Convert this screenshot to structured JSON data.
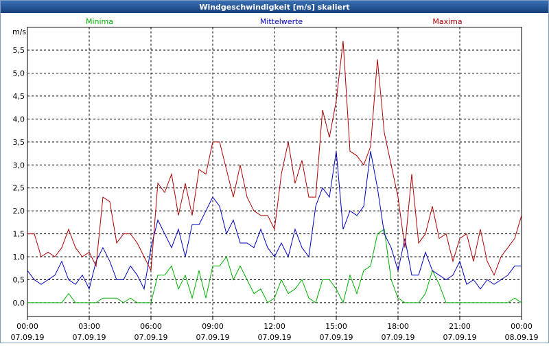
{
  "chart_data": {
    "type": "line",
    "title": "Windgeschwindigkeit [m/s] skaliert",
    "ylabel": "m/s",
    "x": [
      0,
      20,
      40,
      60,
      80,
      100,
      120,
      140,
      160,
      180,
      200,
      220,
      240,
      260,
      280,
      300,
      320,
      340,
      360,
      380,
      400,
      420,
      440,
      460,
      480,
      500,
      520,
      540,
      560,
      580,
      600,
      620,
      640,
      660,
      680,
      700,
      720,
      740,
      760,
      780,
      800,
      820,
      840,
      860,
      880,
      900,
      920,
      940,
      960,
      980,
      1000,
      1020,
      1040,
      1060,
      1080,
      1100,
      1120,
      1140,
      1160,
      1180,
      1200,
      1220,
      1240,
      1260,
      1280,
      1300,
      1320,
      1340,
      1360,
      1380,
      1400,
      1420,
      1440
    ],
    "series": [
      {
        "name": "Minima",
        "color": "#00b000",
        "values": [
          0,
          0,
          0,
          0,
          0,
          0,
          0.2,
          0,
          0,
          0,
          0,
          0.1,
          0.1,
          0.1,
          0,
          0.1,
          0,
          0,
          0,
          0.6,
          0.6,
          0.8,
          0.3,
          0.6,
          0.1,
          0.7,
          0.1,
          0.8,
          0.8,
          1.0,
          0.5,
          0.8,
          0.5,
          0.2,
          0.3,
          0,
          0.1,
          0.5,
          0.2,
          0.3,
          0.5,
          0.1,
          0,
          0.5,
          0.5,
          0.3,
          0,
          0.6,
          0.2,
          0.7,
          0.8,
          1.5,
          1.6,
          0.5,
          0.1,
          0,
          0,
          0,
          0.2,
          0.7,
          0.4,
          0,
          0,
          0,
          0,
          0,
          0,
          0,
          0,
          0,
          0,
          0.1,
          0
        ]
      },
      {
        "name": "Mittelwerte",
        "color": "#0000c0",
        "values": [
          0.7,
          0.5,
          0.4,
          0.5,
          0.6,
          0.9,
          0.5,
          0.4,
          0.6,
          0.3,
          0.9,
          1.2,
          0.9,
          0.5,
          0.5,
          0.8,
          0.6,
          0.3,
          1.2,
          1.8,
          1.5,
          1.2,
          1.6,
          1.0,
          1.7,
          1.7,
          2.0,
          2.3,
          2.1,
          1.5,
          1.8,
          1.3,
          1.3,
          1.2,
          1.6,
          1.2,
          1.0,
          1.3,
          1.0,
          1.6,
          1.2,
          1.0,
          2.1,
          2.5,
          2.3,
          3.3,
          1.6,
          2.0,
          1.9,
          2.1,
          3.3,
          2.5,
          1.5,
          1.2,
          0.7,
          1.4,
          0.6,
          0.6,
          1.1,
          0.7,
          0.6,
          0.5,
          0.6,
          0.9,
          0.4,
          0.5,
          0.3,
          0.5,
          0.4,
          0.5,
          0.6,
          0.8,
          0.8
        ]
      },
      {
        "name": "Maxima",
        "color": "#b00000",
        "values": [
          1.5,
          1.5,
          1.0,
          1.1,
          1.0,
          1.2,
          1.6,
          1.2,
          1.0,
          1.1,
          0.8,
          2.3,
          2.2,
          1.3,
          1.5,
          1.5,
          1.3,
          1.0,
          0.7,
          2.6,
          2.4,
          2.8,
          1.9,
          2.6,
          1.9,
          2.9,
          2.8,
          3.5,
          3.5,
          2.9,
          2.3,
          3.0,
          2.3,
          2.0,
          1.9,
          1.9,
          1.6,
          2.8,
          3.5,
          2.6,
          3.1,
          2.3,
          2.3,
          4.2,
          3.6,
          4.4,
          5.7,
          3.3,
          3.2,
          3.0,
          3.4,
          5.3,
          3.7,
          3.0,
          2.3,
          1.2,
          2.8,
          1.3,
          1.5,
          2.1,
          1.4,
          1.5,
          0.9,
          1.4,
          1.5,
          0.9,
          1.6,
          0.9,
          0.6,
          1.0,
          1.2,
          1.4,
          1.9
        ]
      }
    ],
    "xlim": [
      0,
      1440
    ],
    "xticks": [
      {
        "value": 0,
        "label": "00:00"
      },
      {
        "value": 180,
        "label": "03:00"
      },
      {
        "value": 360,
        "label": "06:00"
      },
      {
        "value": 540,
        "label": "09:00"
      },
      {
        "value": 720,
        "label": "12:00"
      },
      {
        "value": 900,
        "label": "15:00"
      },
      {
        "value": 1080,
        "label": "18:00"
      },
      {
        "value": 1260,
        "label": "21:00"
      },
      {
        "value": 1440,
        "label": "00:00"
      }
    ],
    "xtick_dates": [
      "07.09.19",
      "07.09.19",
      "07.09.19",
      "07.09.19",
      "07.09.19",
      "07.09.19",
      "07.09.19",
      "07.09.19",
      "08.09.19"
    ],
    "ylim": [
      -0.3,
      6.0
    ],
    "yticks": [
      {
        "value": 0,
        "label": "0,0"
      },
      {
        "value": 0.5,
        "label": "0,5"
      },
      {
        "value": 1,
        "label": "1,0"
      },
      {
        "value": 1.5,
        "label": "1,5"
      },
      {
        "value": 2,
        "label": "2,0"
      },
      {
        "value": 2.5,
        "label": "2,5"
      },
      {
        "value": 3,
        "label": "3,0"
      },
      {
        "value": 3.5,
        "label": "3,5"
      },
      {
        "value": 4,
        "label": "4,0"
      },
      {
        "value": 4.5,
        "label": "4,5"
      },
      {
        "value": 5,
        "label": "5,0"
      },
      {
        "value": 5.5,
        "label": "5,5"
      }
    ],
    "grid": true
  }
}
